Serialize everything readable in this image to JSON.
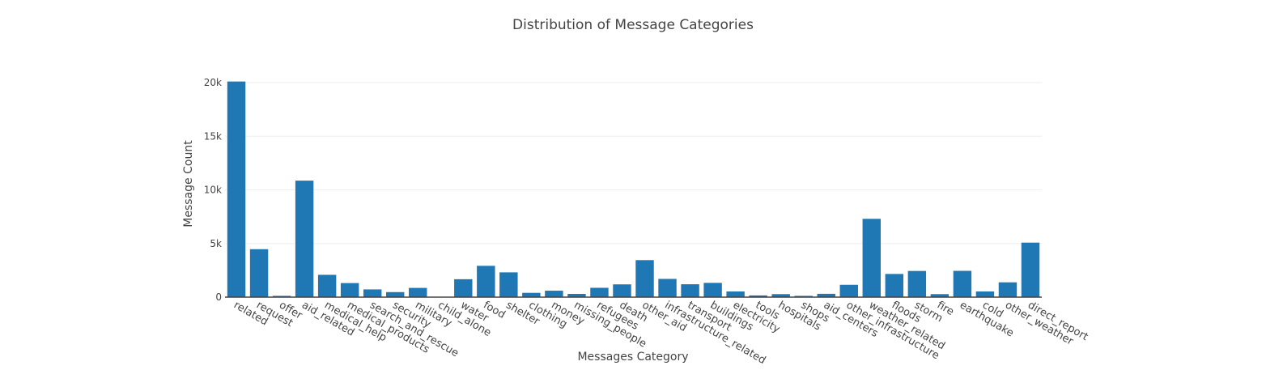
{
  "chart_data": {
    "type": "bar",
    "title": "Distribution of Message Categories",
    "xlabel": "Messages Category",
    "ylabel": "Message Count",
    "ylim": [
      0,
      20000
    ],
    "yticks": [
      0,
      5000,
      10000,
      15000,
      20000
    ],
    "ytick_labels": [
      "0",
      "5k",
      "10k",
      "15k",
      "20k"
    ],
    "grid": true,
    "bar_color": "#1f77b4",
    "categories": [
      "related",
      "request",
      "offer",
      "aid_related",
      "medical_help",
      "medical_products",
      "search_and_rescue",
      "security",
      "military",
      "child_alone",
      "water",
      "food",
      "shelter",
      "clothing",
      "money",
      "missing_people",
      "refugees",
      "death",
      "other_aid",
      "infrastructure_related",
      "transport",
      "buildings",
      "electricity",
      "tools",
      "hospitals",
      "shops",
      "aid_centers",
      "other_infrastructure",
      "weather_related",
      "floods",
      "storm",
      "fire",
      "earthquake",
      "cold",
      "other_weather",
      "direct_report"
    ],
    "values": [
      20100,
      4470,
      120,
      10860,
      2080,
      1310,
      720,
      470,
      860,
      0,
      1670,
      2920,
      2310,
      400,
      600,
      300,
      870,
      1190,
      3450,
      1700,
      1200,
      1330,
      530,
      160,
      280,
      120,
      310,
      1150,
      7300,
      2160,
      2440,
      280,
      2450,
      530,
      1380,
      5080
    ]
  }
}
